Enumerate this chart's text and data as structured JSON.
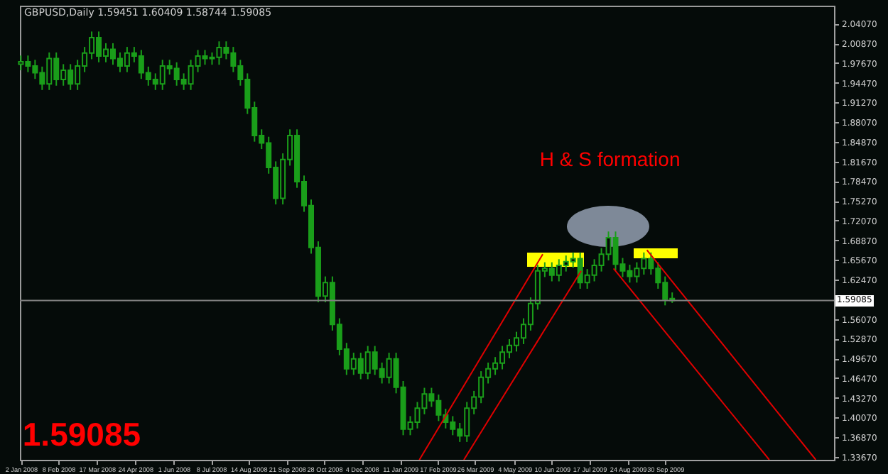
{
  "chart_data": {
    "type": "candlestick",
    "title": "GBPUSD,Daily  1.59451 1.60409 1.58744 1.59085",
    "color": "#1a9e1a",
    "x": [
      "2008-01-02",
      "2008-01-09",
      "2008-01-16",
      "2008-01-23",
      "2008-01-30",
      "2008-02-06",
      "2008-02-13",
      "2008-02-20",
      "2008-02-27",
      "2008-03-05",
      "2008-03-12",
      "2008-03-19",
      "2008-03-26",
      "2008-04-02",
      "2008-04-09",
      "2008-04-16",
      "2008-04-23",
      "2008-04-30",
      "2008-05-07",
      "2008-05-14",
      "2008-05-21",
      "2008-05-28",
      "2008-06-04",
      "2008-06-11",
      "2008-06-18",
      "2008-06-25",
      "2008-07-02",
      "2008-07-09",
      "2008-07-16",
      "2008-07-23",
      "2008-07-30",
      "2008-08-06",
      "2008-08-13",
      "2008-08-20",
      "2008-08-27",
      "2008-09-03",
      "2008-09-10",
      "2008-09-17",
      "2008-09-24",
      "2008-10-01",
      "2008-10-08",
      "2008-10-15",
      "2008-10-22",
      "2008-10-29",
      "2008-11-05",
      "2008-11-12",
      "2008-11-19",
      "2008-11-26",
      "2008-12-03",
      "2008-12-10",
      "2008-12-17",
      "2008-12-24",
      "2008-12-31",
      "2009-01-07",
      "2009-01-14",
      "2009-01-21",
      "2009-01-28",
      "2009-02-04",
      "2009-02-11",
      "2009-02-18",
      "2009-02-25",
      "2009-03-04",
      "2009-03-11",
      "2009-03-18",
      "2009-03-25",
      "2009-04-01",
      "2009-04-08",
      "2009-04-15",
      "2009-04-22",
      "2009-04-29",
      "2009-05-06",
      "2009-05-13",
      "2009-05-20",
      "2009-05-27",
      "2009-06-03",
      "2009-06-10",
      "2009-06-17",
      "2009-06-24",
      "2009-07-01",
      "2009-07-08",
      "2009-07-15",
      "2009-07-22",
      "2009-07-29",
      "2009-08-05",
      "2009-08-12",
      "2009-08-19",
      "2009-08-26",
      "2009-09-02",
      "2009-09-09",
      "2009-09-16",
      "2009-09-23",
      "2009-09-30",
      "2009-10-07"
    ],
    "ohlc": [
      [
        1.975,
        1.989,
        1.965,
        1.979
      ],
      [
        1.979,
        1.989,
        1.962,
        1.972
      ],
      [
        1.972,
        1.982,
        1.951,
        1.961
      ],
      [
        1.961,
        1.971,
        1.933,
        1.943
      ],
      [
        1.943,
        1.994,
        1.933,
        1.984
      ],
      [
        1.984,
        1.994,
        1.94,
        1.95
      ],
      [
        1.95,
        1.975,
        1.94,
        1.965
      ],
      [
        1.965,
        1.975,
        1.933,
        1.943
      ],
      [
        1.943,
        1.982,
        1.933,
        1.972
      ],
      [
        1.972,
        2.003,
        1.962,
        1.993
      ],
      [
        1.993,
        2.028,
        1.983,
        2.018
      ],
      [
        2.018,
        2.028,
        1.978,
        1.988
      ],
      [
        1.988,
        2.009,
        1.978,
        1.999
      ],
      [
        1.999,
        2.009,
        1.974,
        1.984
      ],
      [
        1.984,
        1.994,
        1.962,
        1.972
      ],
      [
        1.972,
        2.003,
        1.962,
        1.993
      ],
      [
        1.993,
        2.003,
        1.978,
        1.988
      ],
      [
        1.988,
        1.998,
        1.951,
        1.961
      ],
      [
        1.961,
        1.971,
        1.94,
        1.95
      ],
      [
        1.95,
        1.96,
        1.933,
        1.943
      ],
      [
        1.943,
        1.982,
        1.933,
        1.972
      ],
      [
        1.972,
        1.982,
        1.958,
        1.968
      ],
      [
        1.968,
        1.978,
        1.94,
        1.95
      ],
      [
        1.95,
        1.96,
        1.933,
        1.943
      ],
      [
        1.943,
        1.982,
        1.933,
        1.972
      ],
      [
        1.972,
        1.998,
        1.962,
        1.988
      ],
      [
        1.988,
        1.998,
        1.974,
        1.984
      ],
      [
        1.984,
        1.994,
        1.974,
        1.986
      ],
      [
        1.986,
        2.012,
        1.974,
        2.002
      ],
      [
        2.002,
        2.012,
        1.983,
        1.993
      ],
      [
        1.993,
        2.003,
        1.962,
        1.972
      ],
      [
        1.972,
        1.982,
        1.94,
        1.95
      ],
      [
        1.95,
        1.96,
        1.894,
        1.904
      ],
      [
        1.904,
        1.914,
        1.849,
        1.859
      ],
      [
        1.859,
        1.869,
        1.837,
        1.847
      ],
      [
        1.847,
        1.857,
        1.797,
        1.807
      ],
      [
        1.807,
        1.817,
        1.747,
        1.757
      ],
      [
        1.757,
        1.83,
        1.747,
        1.82
      ],
      [
        1.82,
        1.869,
        1.81,
        1.859
      ],
      [
        1.859,
        1.869,
        1.774,
        1.784
      ],
      [
        1.784,
        1.794,
        1.735,
        1.745
      ],
      [
        1.745,
        1.755,
        1.667,
        1.677
      ],
      [
        1.677,
        1.687,
        1.588,
        1.598
      ],
      [
        1.598,
        1.63,
        1.588,
        1.62
      ],
      [
        1.62,
        1.63,
        1.542,
        1.552
      ],
      [
        1.552,
        1.562,
        1.502,
        1.512
      ],
      [
        1.512,
        1.522,
        1.47,
        1.48
      ],
      [
        1.48,
        1.506,
        1.47,
        1.496
      ],
      [
        1.496,
        1.506,
        1.463,
        1.473
      ],
      [
        1.473,
        1.517,
        1.463,
        1.507
      ],
      [
        1.507,
        1.517,
        1.47,
        1.48
      ],
      [
        1.48,
        1.49,
        1.456,
        1.466
      ],
      [
        1.466,
        1.506,
        1.456,
        1.496
      ],
      [
        1.496,
        1.506,
        1.44,
        1.45
      ],
      [
        1.45,
        1.46,
        1.372,
        1.382
      ],
      [
        1.382,
        1.403,
        1.372,
        1.393
      ],
      [
        1.393,
        1.426,
        1.383,
        1.416
      ],
      [
        1.416,
        1.449,
        1.406,
        1.439
      ],
      [
        1.439,
        1.449,
        1.418,
        1.428
      ],
      [
        1.428,
        1.438,
        1.395,
        1.405
      ],
      [
        1.405,
        1.415,
        1.383,
        1.393
      ],
      [
        1.393,
        1.403,
        1.372,
        1.382
      ],
      [
        1.382,
        1.392,
        1.361,
        1.371
      ],
      [
        1.371,
        1.426,
        1.361,
        1.416
      ],
      [
        1.416,
        1.444,
        1.406,
        1.434
      ],
      [
        1.434,
        1.476,
        1.424,
        1.466
      ],
      [
        1.466,
        1.49,
        1.456,
        1.48
      ],
      [
        1.48,
        1.499,
        1.47,
        1.489
      ],
      [
        1.489,
        1.517,
        1.479,
        1.507
      ],
      [
        1.507,
        1.528,
        1.497,
        1.518
      ],
      [
        1.518,
        1.54,
        1.508,
        1.53
      ],
      [
        1.53,
        1.562,
        1.52,
        1.552
      ],
      [
        1.552,
        1.596,
        1.542,
        1.586
      ],
      [
        1.586,
        1.649,
        1.576,
        1.639
      ],
      [
        1.639,
        1.653,
        1.629,
        1.643
      ],
      [
        1.643,
        1.653,
        1.622,
        1.632
      ],
      [
        1.632,
        1.658,
        1.622,
        1.648
      ],
      [
        1.648,
        1.664,
        1.638,
        1.654
      ],
      [
        1.654,
        1.669,
        1.644,
        1.659
      ],
      [
        1.659,
        1.669,
        1.61,
        1.62
      ],
      [
        1.62,
        1.642,
        1.61,
        1.632
      ],
      [
        1.632,
        1.658,
        1.622,
        1.648
      ],
      [
        1.648,
        1.676,
        1.638,
        1.666
      ],
      [
        1.666,
        1.703,
        1.656,
        1.693
      ],
      [
        1.693,
        1.703,
        1.64,
        1.65
      ],
      [
        1.65,
        1.66,
        1.629,
        1.639
      ],
      [
        1.639,
        1.649,
        1.62,
        1.63
      ],
      [
        1.63,
        1.653,
        1.62,
        1.643
      ],
      [
        1.643,
        1.669,
        1.633,
        1.659
      ],
      [
        1.659,
        1.669,
        1.633,
        1.643
      ],
      [
        1.643,
        1.653,
        1.61,
        1.62
      ],
      [
        1.62,
        1.63,
        1.583,
        1.593
      ],
      [
        1.594,
        1.604,
        1.587,
        1.591
      ]
    ],
    "series": [
      {
        "type": "line",
        "color": "#e00000",
        "x": [
          "2009-01-30",
          "2009-06-01"
        ],
        "values": [
          1.332,
          1.666
        ]
      },
      {
        "type": "line",
        "color": "#e00000",
        "x": [
          "2009-03-15",
          "2009-07-09"
        ],
        "values": [
          1.332,
          1.639
        ]
      },
      {
        "type": "line",
        "color": "#e00000",
        "x": [
          "2009-08-10",
          "2010-01-11"
        ],
        "values": [
          1.643,
          1.332
        ]
      },
      {
        "type": "line",
        "color": "#e00000",
        "x": [
          "2009-09-12",
          "2010-02-26"
        ],
        "values": [
          1.673,
          1.332
        ]
      }
    ],
    "xlim": [
      "2008-01-01",
      "2010-03-16"
    ],
    "xticks": [
      {
        "value": "2008-01-02",
        "label": "2 Jan 2008"
      },
      {
        "value": "2008-02-08",
        "label": "8 Feb 2008"
      },
      {
        "value": "2008-03-17",
        "label": "17 Mar 2008"
      },
      {
        "value": "2008-04-24",
        "label": "24 Apr 2008"
      },
      {
        "value": "2008-06-01",
        "label": "1 Jun 2008"
      },
      {
        "value": "2008-07-08",
        "label": "8 Jul 2008"
      },
      {
        "value": "2008-08-14",
        "label": "14 Aug 2008"
      },
      {
        "value": "2008-09-21",
        "label": "21 Sep 2008"
      },
      {
        "value": "2008-10-28",
        "label": "28 Oct 2008"
      },
      {
        "value": "2008-12-04",
        "label": "4 Dec 2008"
      },
      {
        "value": "2009-01-11",
        "label": "11 Jan 2009"
      },
      {
        "value": "2009-02-17",
        "label": "17 Feb 2009"
      },
      {
        "value": "2009-03-26",
        "label": "26 Mar 2009"
      },
      {
        "value": "2009-05-04",
        "label": "4 May 2009"
      },
      {
        "value": "2009-06-10",
        "label": "10 Jun 2009"
      },
      {
        "value": "2009-07-17",
        "label": "17 Jul 2009"
      },
      {
        "value": "2009-08-24",
        "label": "24 Aug 2009"
      },
      {
        "value": "2009-09-30",
        "label": "30 Sep 2009"
      }
    ],
    "ylim": [
      1.332,
      2.07
    ],
    "yticks": [
      {
        "value": 1.3367,
        "label": "1.33670"
      },
      {
        "value": 1.3687,
        "label": "1.36870"
      },
      {
        "value": 1.4007,
        "label": "1.40070"
      },
      {
        "value": 1.4327,
        "label": "1.43270"
      },
      {
        "value": 1.4647,
        "label": "1.46470"
      },
      {
        "value": 1.4967,
        "label": "1.49670"
      },
      {
        "value": 1.5287,
        "label": "1.52870"
      },
      {
        "value": 1.5607,
        "label": "1.56070"
      },
      {
        "value": 1.6247,
        "label": "1.62470"
      },
      {
        "value": 1.6567,
        "label": "1.65670"
      },
      {
        "value": 1.6887,
        "label": "1.68870"
      },
      {
        "value": 1.7207,
        "label": "1.72070"
      },
      {
        "value": 1.7527,
        "label": "1.75270"
      },
      {
        "value": 1.7847,
        "label": "1.78470"
      },
      {
        "value": 1.8167,
        "label": "1.81670"
      },
      {
        "value": 1.8487,
        "label": "1.84870"
      },
      {
        "value": 1.8807,
        "label": "1.88070"
      },
      {
        "value": 1.9127,
        "label": "1.91270"
      },
      {
        "value": 1.9447,
        "label": "1.94470"
      },
      {
        "value": 1.9767,
        "label": "1.97670"
      },
      {
        "value": 2.0087,
        "label": "2.00870"
      },
      {
        "value": 2.0407,
        "label": "2.04070"
      }
    ],
    "ref_lines": [
      {
        "axis": "y",
        "value": 1.59085,
        "label": "1.59085",
        "color": "#808080"
      }
    ],
    "annotations": [
      "H & S formation",
      "1.59085"
    ]
  }
}
